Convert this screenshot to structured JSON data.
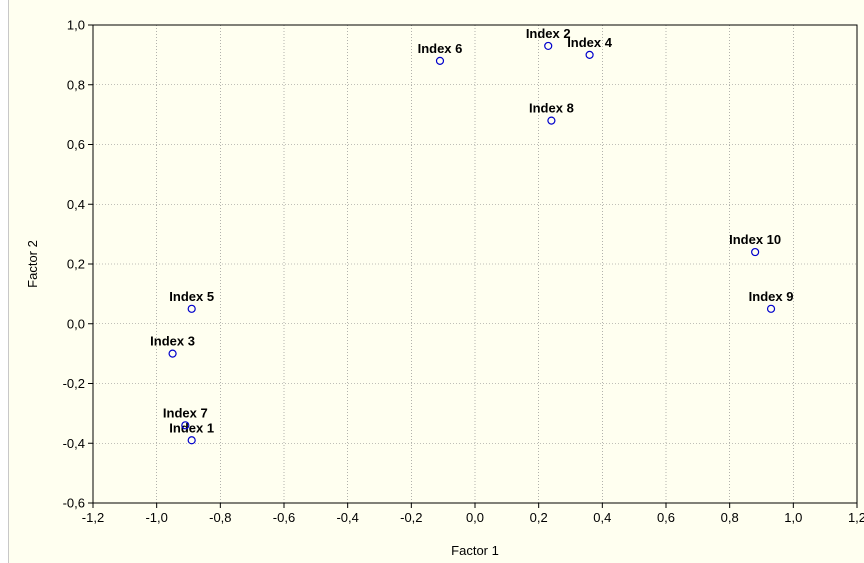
{
  "chart_data": {
    "type": "scatter",
    "xlabel": "Factor 1",
    "ylabel": "Factor 2",
    "xlim": [
      -1.2,
      1.2
    ],
    "ylim": [
      -0.6,
      1.0
    ],
    "xticks": [
      "-1,2",
      "-1,0",
      "-0,8",
      "-0,6",
      "-0,4",
      "-0,2",
      "0,0",
      "0,2",
      "0,4",
      "0,6",
      "0,8",
      "1,0",
      "1,2"
    ],
    "yticks": [
      "-0,6",
      "-0,4",
      "-0,2",
      "0,0",
      "0,2",
      "0,4",
      "0,6",
      "0,8",
      "1,0"
    ],
    "grid": true,
    "points": [
      {
        "label": "Index 1",
        "x": -0.89,
        "y": -0.39
      },
      {
        "label": "Index 2",
        "x": 0.23,
        "y": 0.93
      },
      {
        "label": "Index 3",
        "x": -0.95,
        "y": -0.1
      },
      {
        "label": "Index 4",
        "x": 0.36,
        "y": 0.9
      },
      {
        "label": "Index 5",
        "x": -0.89,
        "y": 0.05
      },
      {
        "label": "Index 6",
        "x": -0.11,
        "y": 0.88
      },
      {
        "label": "Index 7",
        "x": -0.91,
        "y": -0.34
      },
      {
        "label": "Index 8",
        "x": 0.24,
        "y": 0.68
      },
      {
        "label": "Index 9",
        "x": 0.93,
        "y": 0.05
      },
      {
        "label": "Index 10",
        "x": 0.88,
        "y": 0.24
      }
    ],
    "colors": {
      "marker": "#0000cc",
      "grid": "#808080",
      "background": "#fffff0"
    }
  }
}
